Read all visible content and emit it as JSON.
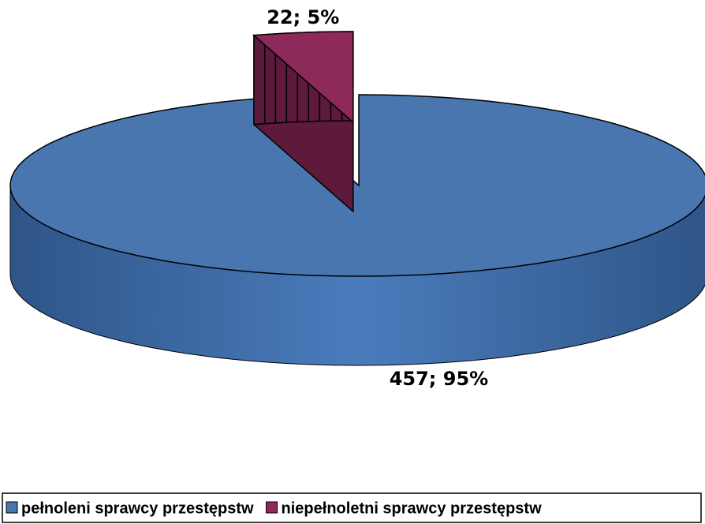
{
  "chart_data": {
    "type": "pie",
    "categories": [
      "pełnoleni sprawcy przestępstw",
      "niepełnoletni sprawcy przestępstw"
    ],
    "values": [
      457,
      22
    ],
    "value_labels": [
      "457; 95%",
      "22; 5%"
    ],
    "colors": [
      "#4a76b0",
      "#8e2a5a"
    ],
    "legend": "bottom"
  }
}
